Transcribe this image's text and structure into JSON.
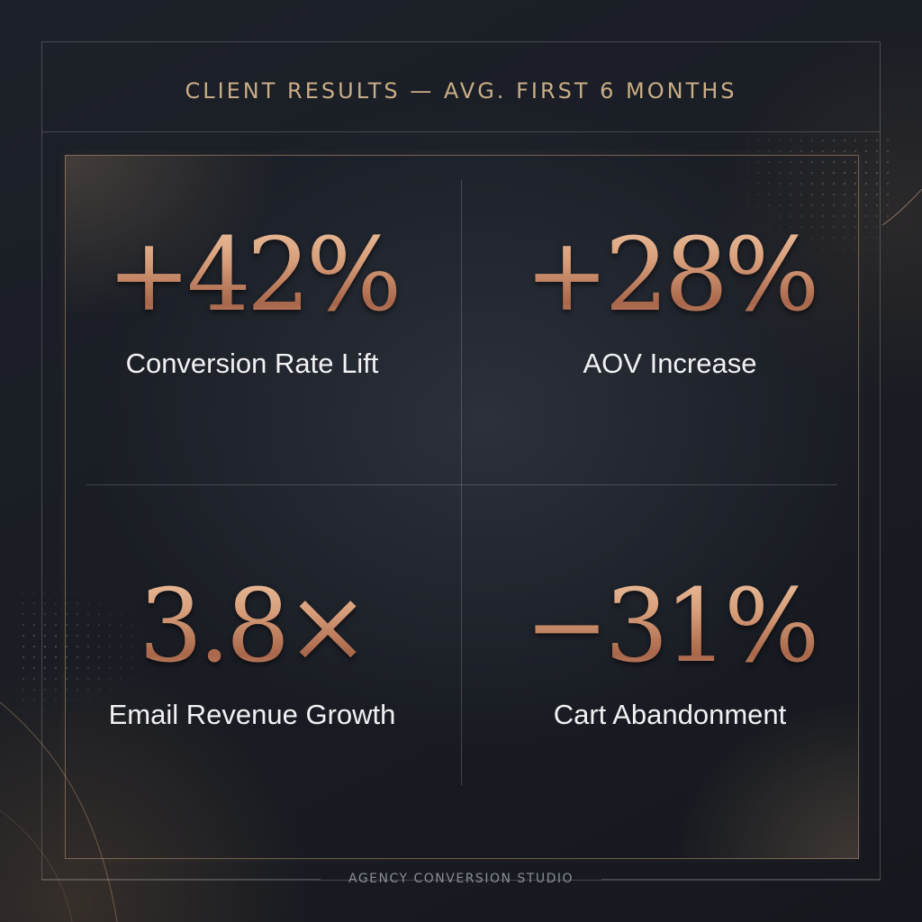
{
  "header": {
    "title": "CLIENT RESULTS — AVG. FIRST 6 MONTHS"
  },
  "stats": [
    {
      "value": "+42%",
      "label": "Conversion Rate Lift"
    },
    {
      "value": "+28%",
      "label": "AOV Increase"
    },
    {
      "value": "3.8×",
      "label": "Email Revenue Growth"
    },
    {
      "value": "−31%",
      "label": "Cart Abandonment"
    }
  ],
  "footer": {
    "brand": "AGENCY CONVERSION STUDIO"
  },
  "colors": {
    "background": "#16191f",
    "accent_copper": "#c88e6a",
    "header_gold": "#c9ad86",
    "label_text": "#f1f1f3",
    "footer_text": "#8a8d95"
  }
}
